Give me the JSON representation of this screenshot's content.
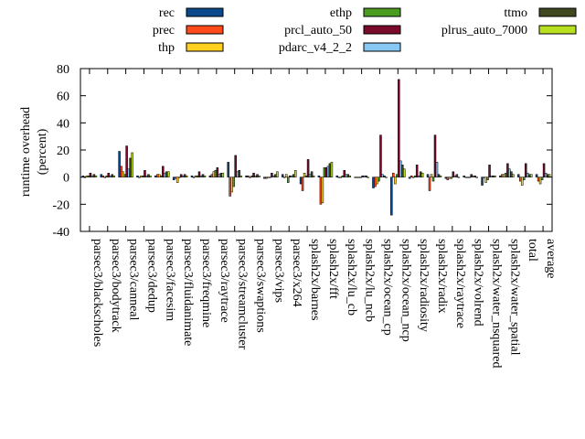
{
  "chart_data": {
    "type": "bar",
    "ylabel": "runtime overhead\n(percent)",
    "ylim": [
      -40,
      80
    ],
    "yticks": [
      -40,
      -20,
      0,
      20,
      40,
      60,
      80
    ],
    "grid": false,
    "legend_position": "top",
    "categories": [
      "parsec3/blackscholes",
      "parsec3/bodytrack",
      "parsec3/canneal",
      "parsec3/dedup",
      "parsec3/facesim",
      "parsec3/fluidanimate",
      "parsec3/freqmine",
      "parsec3/raytrace",
      "parsec3/streamcluster",
      "parsec3/swaptions",
      "parsec3/vips",
      "parsec3/x264",
      "splash2x/barnes",
      "splash2x/fft",
      "splash2x/lu_cb",
      "splash2x/lu_ncb",
      "splash2x/ocean_cp",
      "splash2x/ocean_ncp",
      "splash2x/radiosity",
      "splash2x/radix",
      "splash2x/raytrace",
      "splash2x/volrend",
      "splash2x/water_nsquared",
      "splash2x/water_spatial",
      "total",
      "average"
    ],
    "series": [
      {
        "name": "rec",
        "color": "#0a4a8c",
        "values": [
          1,
          2,
          19,
          1,
          1,
          -2,
          1,
          1,
          11,
          1,
          -1,
          2,
          -5,
          1,
          1,
          0,
          -8,
          -28,
          -1,
          2,
          -1,
          1,
          -6,
          1,
          2,
          2
        ]
      },
      {
        "name": "prec",
        "color": "#ff4a1a",
        "values": [
          0,
          1,
          8,
          0,
          2,
          -1,
          0,
          2,
          -14,
          1,
          -1,
          0,
          -10,
          -20,
          0,
          0,
          -7,
          3,
          1,
          -10,
          -2,
          0,
          0,
          2,
          -3,
          -3
        ]
      },
      {
        "name": "thp",
        "color": "#ffd020",
        "values": [
          1,
          0,
          4,
          1,
          2,
          -4,
          1,
          4,
          -11,
          0,
          0,
          2,
          3,
          -19,
          0,
          0,
          -5,
          -5,
          0,
          2,
          -1,
          0,
          -4,
          2,
          -6,
          -5
        ]
      },
      {
        "name": "ethp",
        "color": "#4a9c20",
        "values": [
          1,
          1,
          2,
          1,
          1,
          0,
          1,
          5,
          -7,
          1,
          0,
          -4,
          1,
          7,
          1,
          0,
          -3,
          2,
          1,
          -3,
          -1,
          0,
          -2,
          3,
          -2,
          -2
        ]
      },
      {
        "name": "prcl_auto_50",
        "color": "#7a0a2a",
        "values": [
          3,
          3,
          23,
          5,
          8,
          2,
          4,
          7,
          16,
          3,
          3,
          1,
          13,
          7,
          5,
          1,
          31,
          72,
          9,
          31,
          4,
          2,
          9,
          10,
          10,
          10
        ]
      },
      {
        "name": "pdarc_v4_2_2",
        "color": "#87c8f5",
        "values": [
          1,
          1,
          6,
          1,
          3,
          1,
          1,
          2,
          4,
          1,
          1,
          1,
          2,
          8,
          2,
          1,
          2,
          12,
          1,
          11,
          1,
          1,
          1,
          6,
          3,
          3
        ]
      },
      {
        "name": "ttmo",
        "color": "#404820",
        "values": [
          2,
          2,
          14,
          2,
          4,
          2,
          2,
          3,
          5,
          2,
          2,
          2,
          4,
          10,
          2,
          1,
          1,
          9,
          4,
          2,
          2,
          1,
          1,
          4,
          2,
          2
        ]
      },
      {
        "name": "plrus_auto_7000",
        "color": "#b8e020",
        "values": [
          1,
          1,
          18,
          1,
          4,
          1,
          1,
          3,
          1,
          1,
          4,
          5,
          1,
          11,
          1,
          0,
          0,
          6,
          3,
          1,
          0,
          0,
          1,
          2,
          2,
          2
        ]
      }
    ]
  }
}
